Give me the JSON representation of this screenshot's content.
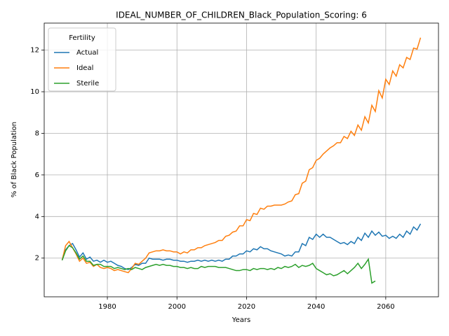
{
  "chart_data": {
    "type": "line",
    "title": "IDEAL_NUMBER_OF_CHILDREN_Black_Population_Scoring: 6",
    "xlabel": "Years",
    "ylabel": "% of Black Population",
    "legend_title": "Fertility",
    "legend_loc": "upper left",
    "grid": true,
    "x": [
      1967,
      1968,
      1969,
      1970,
      1971,
      1972,
      1973,
      1974,
      1975,
      1976,
      1977,
      1978,
      1979,
      1980,
      1981,
      1982,
      1983,
      1984,
      1985,
      1986,
      1987,
      1988,
      1989,
      1990,
      1991,
      1992,
      1993,
      1994,
      1995,
      1996,
      1997,
      1998,
      1999,
      2000,
      2001,
      2002,
      2003,
      2004,
      2005,
      2006,
      2007,
      2008,
      2009,
      2010,
      2011,
      2012,
      2013,
      2014,
      2015,
      2016,
      2017,
      2018,
      2019,
      2020,
      2021,
      2022,
      2023,
      2024,
      2025,
      2026,
      2027,
      2028,
      2029,
      2030,
      2031,
      2032,
      2033,
      2034,
      2035,
      2036,
      2037,
      2038,
      2039,
      2040,
      2041,
      2042,
      2043,
      2044,
      2045,
      2046,
      2047,
      2048,
      2049,
      2050,
      2051,
      2052,
      2053,
      2054,
      2055,
      2056,
      2057,
      2058,
      2059,
      2060,
      2061,
      2062,
      2063,
      2064,
      2065,
      2066,
      2067,
      2068,
      2069,
      2070
    ],
    "xlim": [
      1961.85,
      2075.15
    ],
    "xticks": [
      1980,
      2000,
      2020,
      2040,
      2060
    ],
    "ylim": [
      0.14,
      13.3
    ],
    "yticks": [
      2,
      4,
      6,
      8,
      10,
      12
    ],
    "series": [
      {
        "name": "Actual",
        "color": "#1f77b4",
        "values": [
          1.9,
          2.4,
          2.6,
          2.7,
          2.4,
          2.05,
          2.25,
          1.95,
          2.05,
          1.85,
          1.9,
          1.8,
          1.9,
          1.8,
          1.85,
          1.75,
          1.65,
          1.6,
          1.5,
          1.45,
          1.55,
          1.7,
          1.65,
          1.75,
          1.75,
          2.0,
          1.95,
          1.95,
          1.95,
          1.9,
          1.95,
          1.95,
          1.9,
          1.9,
          1.85,
          1.85,
          1.8,
          1.85,
          1.85,
          1.9,
          1.85,
          1.9,
          1.85,
          1.9,
          1.85,
          1.9,
          1.85,
          1.95,
          1.95,
          2.1,
          2.1,
          2.2,
          2.2,
          2.35,
          2.3,
          2.45,
          2.4,
          2.55,
          2.45,
          2.45,
          2.35,
          2.3,
          2.25,
          2.2,
          2.1,
          2.15,
          2.1,
          2.3,
          2.3,
          2.7,
          2.6,
          3.0,
          2.9,
          3.15,
          3.0,
          3.15,
          3.0,
          3.0,
          2.9,
          2.8,
          2.7,
          2.75,
          2.65,
          2.8,
          2.7,
          3.0,
          2.85,
          3.2,
          3.0,
          3.3,
          3.1,
          3.25,
          3.05,
          3.1,
          2.95,
          3.05,
          2.95,
          3.15,
          3.0,
          3.3,
          3.15,
          3.5,
          3.35,
          3.65
        ]
      },
      {
        "name": "Ideal",
        "color": "#ff7f0e",
        "values": [
          1.9,
          2.6,
          2.8,
          2.5,
          2.2,
          1.85,
          2.0,
          1.75,
          1.8,
          1.6,
          1.7,
          1.55,
          1.5,
          1.55,
          1.5,
          1.4,
          1.45,
          1.4,
          1.35,
          1.3,
          1.5,
          1.75,
          1.7,
          1.85,
          2.0,
          2.25,
          2.3,
          2.35,
          2.35,
          2.4,
          2.35,
          2.35,
          2.3,
          2.3,
          2.2,
          2.3,
          2.25,
          2.4,
          2.4,
          2.5,
          2.5,
          2.6,
          2.65,
          2.7,
          2.75,
          2.85,
          2.85,
          3.05,
          3.1,
          3.25,
          3.3,
          3.55,
          3.55,
          3.85,
          3.8,
          4.15,
          4.1,
          4.4,
          4.35,
          4.5,
          4.5,
          4.55,
          4.55,
          4.55,
          4.6,
          4.7,
          4.75,
          5.05,
          5.1,
          5.6,
          5.7,
          6.25,
          6.35,
          6.7,
          6.8,
          7.0,
          7.15,
          7.3,
          7.4,
          7.55,
          7.55,
          7.85,
          7.75,
          8.1,
          7.9,
          8.4,
          8.15,
          8.8,
          8.5,
          9.35,
          9.05,
          10.05,
          9.7,
          10.6,
          10.35,
          11.0,
          10.75,
          11.3,
          11.15,
          11.65,
          11.55,
          12.1,
          12.05,
          12.6
        ]
      },
      {
        "name": "Sterile",
        "color": "#2ca02c",
        "values": [
          1.9,
          2.35,
          2.6,
          2.5,
          2.25,
          1.95,
          2.1,
          1.85,
          1.85,
          1.65,
          1.7,
          1.7,
          1.6,
          1.6,
          1.6,
          1.5,
          1.55,
          1.5,
          1.45,
          1.5,
          1.45,
          1.55,
          1.5,
          1.45,
          1.55,
          1.6,
          1.65,
          1.7,
          1.65,
          1.7,
          1.65,
          1.65,
          1.6,
          1.6,
          1.55,
          1.55,
          1.5,
          1.55,
          1.5,
          1.5,
          1.6,
          1.55,
          1.6,
          1.6,
          1.6,
          1.55,
          1.55,
          1.55,
          1.5,
          1.45,
          1.4,
          1.4,
          1.45,
          1.45,
          1.4,
          1.5,
          1.45,
          1.5,
          1.5,
          1.45,
          1.5,
          1.45,
          1.55,
          1.5,
          1.6,
          1.55,
          1.6,
          1.7,
          1.55,
          1.65,
          1.6,
          1.65,
          1.75,
          1.5,
          1.4,
          1.3,
          1.2,
          1.25,
          1.15,
          1.2,
          1.3,
          1.4,
          1.25,
          1.4,
          1.55,
          1.75,
          1.5,
          1.7,
          1.95,
          0.8,
          0.9,
          null,
          null,
          null,
          null,
          null,
          null,
          null,
          null,
          null,
          null,
          null,
          null,
          null
        ]
      }
    ]
  }
}
